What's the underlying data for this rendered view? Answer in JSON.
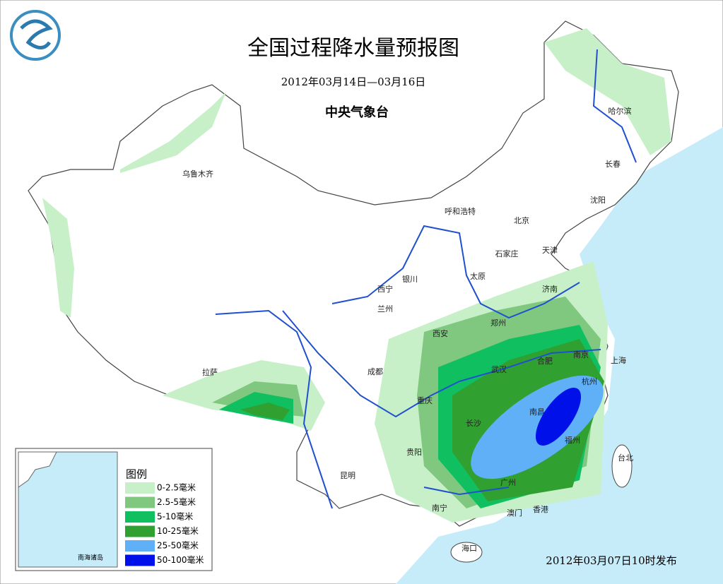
{
  "title": "全国过程降水量预报图",
  "subtitle": "2012年03月14日—03月16日",
  "agency": "中央气象台",
  "release": "2012年03月07日10时发布",
  "inset_label": "南海诸岛",
  "cities": [
    "乌鲁木齐",
    "哈尔滨",
    "长春",
    "沈阳",
    "呼和浩特",
    "北京",
    "天津",
    "石家庄",
    "太原",
    "济南",
    "银川",
    "西宁",
    "兰州",
    "郑州",
    "西安",
    "南京",
    "上海",
    "合肥",
    "武汉",
    "成都",
    "杭州",
    "拉萨",
    "重庆",
    "南昌",
    "长沙",
    "福州",
    "贵阳",
    "台北",
    "昆明",
    "广州",
    "南宁",
    "澳门",
    "香港",
    "海口"
  ],
  "legend": {
    "title": "图例",
    "items": [
      {
        "label": "0-2.5毫米",
        "color": "#c8f0c8"
      },
      {
        "label": "2.5-5毫米",
        "color": "#80c880"
      },
      {
        "label": "5-10毫米",
        "color": "#10c060"
      },
      {
        "label": "10-25毫米",
        "color": "#30a030"
      },
      {
        "label": "25-50毫米",
        "color": "#60b0f8"
      },
      {
        "label": "50-100毫米",
        "color": "#0010e8"
      }
    ]
  }
}
